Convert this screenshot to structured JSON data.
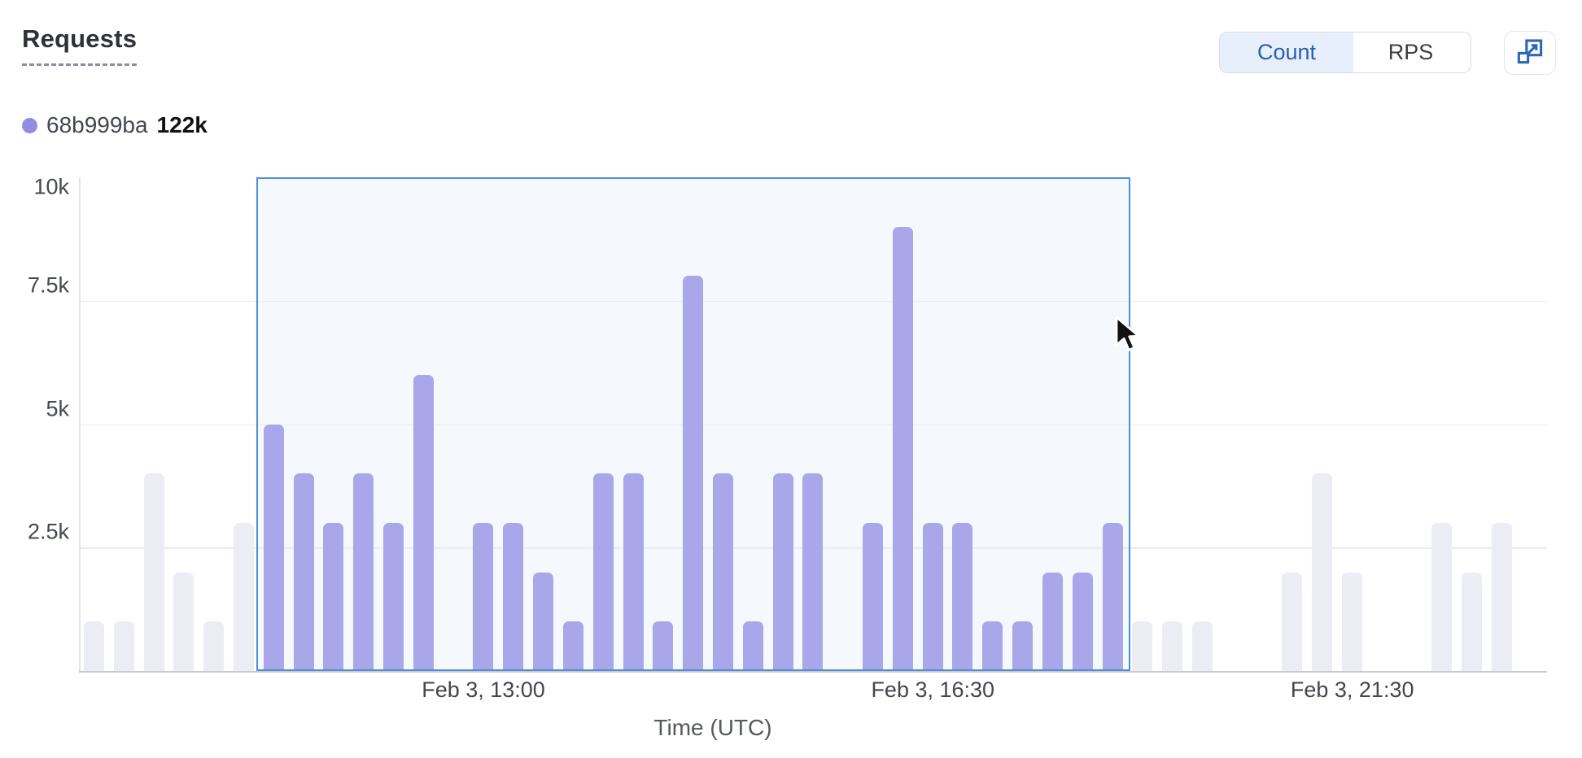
{
  "header": {
    "title": "Requests",
    "toggle": {
      "count_label": "Count",
      "rps_label": "RPS",
      "active": "Count"
    }
  },
  "legend": {
    "series_id": "68b999ba",
    "total": "122k",
    "dot_color": "#938be4"
  },
  "chart_data": {
    "type": "bar",
    "title": "Requests",
    "xlabel": "Time (UTC)",
    "ylabel": "",
    "ylim": [
      0,
      10000
    ],
    "grid": true,
    "yticks": [
      {
        "label": "10k",
        "value": 10000,
        "gridline": false
      },
      {
        "label": "7.5k",
        "value": 7500,
        "gridline": true
      },
      {
        "label": "5k",
        "value": 5000,
        "gridline": true
      },
      {
        "label": "2.5k",
        "value": 2500,
        "gridline": true
      }
    ],
    "xticks": [
      {
        "label": "Feb 3, 13:00",
        "slot": 13
      },
      {
        "label": "Feb 3, 16:30",
        "slot": 28
      },
      {
        "label": "Feb 3, 21:30",
        "slot": 42
      }
    ],
    "values": [
      1000,
      1000,
      4000,
      2000,
      1000,
      3000,
      5000,
      4000,
      3000,
      4000,
      3000,
      6000,
      0,
      3000,
      3000,
      2000,
      1000,
      4000,
      4000,
      1000,
      8000,
      4000,
      1000,
      4000,
      4000,
      0,
      3000,
      9000,
      3000,
      3000,
      1000,
      1000,
      2000,
      2000,
      3000,
      1000,
      1000,
      1000,
      0,
      0,
      2000,
      4000,
      2000,
      0,
      0,
      3000,
      2000,
      3000,
      0
    ],
    "series": [
      {
        "name": "68b999ba",
        "total_label": "122k",
        "color": "#938be4"
      }
    ],
    "selection": {
      "start_slot": 6,
      "end_slot": 34,
      "border_color": "#4e90d8"
    },
    "dimmed_color": "#ececf4",
    "legend_position": "top-left"
  }
}
